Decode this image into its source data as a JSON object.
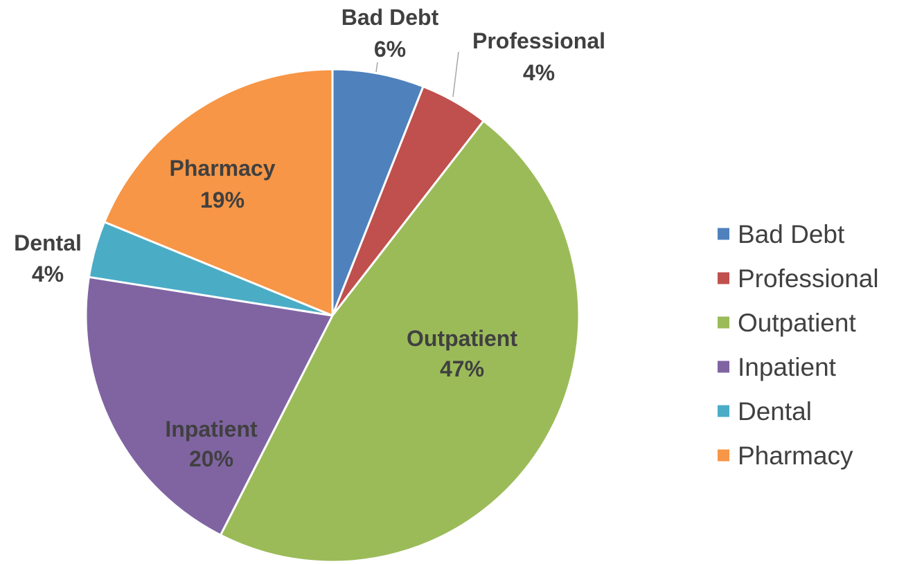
{
  "chart_data": {
    "type": "pie",
    "start_angle_deg": 0,
    "direction": "clockwise",
    "slices": [
      {
        "name": "Bad Debt",
        "value": 6,
        "label": "6%",
        "color": "#4F81BD"
      },
      {
        "name": "Professional",
        "value": 4.5,
        "label": "4%",
        "color": "#C0504D"
      },
      {
        "name": "Outpatient",
        "value": 47,
        "label": "47%",
        "color": "#9BBB59"
      },
      {
        "name": "Inpatient",
        "value": 20,
        "label": "20%",
        "color": "#8064A2"
      },
      {
        "name": "Dental",
        "value": 3.7,
        "label": "4%",
        "color": "#4BACC6"
      },
      {
        "name": "Pharmacy",
        "value": 18.8,
        "label": "19%",
        "color": "#F79646"
      }
    ],
    "legend": {
      "position": "right",
      "entries": [
        "Bad Debt",
        "Professional",
        "Outpatient",
        "Inpatient",
        "Dental",
        "Pharmacy"
      ]
    },
    "data_labels": "outside-end for small slices, inside for large slices; category name and percentage"
  }
}
